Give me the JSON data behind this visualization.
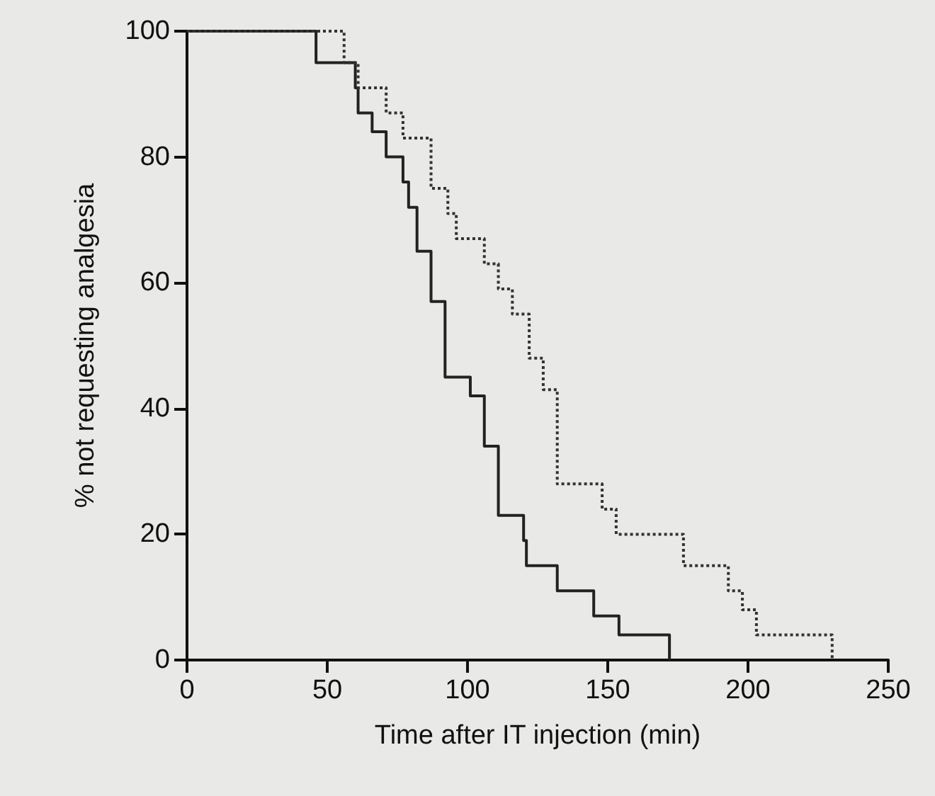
{
  "chart_data": {
    "type": "step",
    "xlabel": "Time after IT injection (min)",
    "ylabel": "% not requesting analgesia",
    "xlim": [
      0,
      250
    ],
    "xticks": [
      0,
      50,
      100,
      150,
      200,
      250
    ],
    "ylim": [
      0,
      100
    ],
    "yticks": [
      0,
      20,
      40,
      60,
      80,
      100
    ],
    "marker": "none",
    "series": [
      {
        "color": "#222222",
        "line_style": "solid",
        "x": [
          0,
          46,
          60,
          61,
          66,
          71,
          77,
          79,
          82,
          87,
          92,
          101,
          106,
          111,
          120,
          121,
          132,
          145,
          154,
          172
        ],
        "values": [
          100,
          95,
          91,
          87,
          84,
          80,
          76,
          72,
          65,
          57,
          45,
          42,
          34,
          23,
          19,
          15,
          11,
          7,
          4,
          0
        ]
      },
      {
        "color": "#333333",
        "line_style": "dotted",
        "x": [
          0,
          56,
          61,
          71,
          77,
          87,
          93,
          96,
          106,
          111,
          116,
          122,
          127,
          132,
          148,
          153,
          177,
          193,
          198,
          203,
          230
        ],
        "values": [
          100,
          95,
          91,
          87,
          83,
          75,
          71,
          67,
          63,
          59,
          55,
          48,
          43,
          28,
          24,
          20,
          15,
          11,
          8,
          4,
          0
        ]
      }
    ]
  }
}
